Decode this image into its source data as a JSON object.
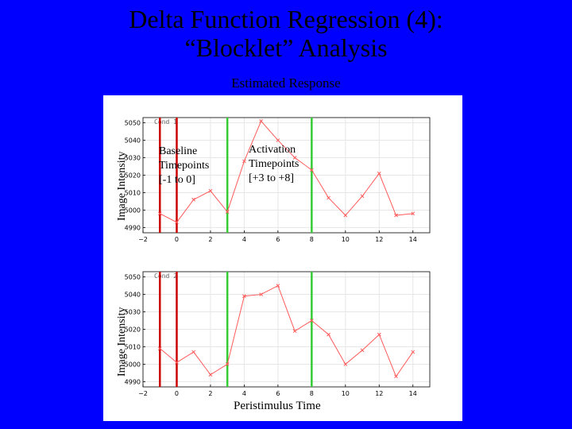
{
  "slide": {
    "title_line1": "Delta Function Regression (4):",
    "title_line2": "“Blocklet” Analysis",
    "subtitle": "Estimated Response"
  },
  "annotations": {
    "baseline_line1": "Baseline",
    "baseline_line2": "Timepoints",
    "baseline_line3": "[-1 to 0]",
    "activation_line1": "Activation",
    "activation_line2": "Timepoints",
    "activation_line3": "[+3 to +8]"
  },
  "colors": {
    "background": "#0000ff",
    "series": "#ff5a5a",
    "baseline_lines": "#cc0000",
    "activation_lines": "#33cc33"
  },
  "chart_data": [
    {
      "type": "line",
      "panel_label": "Cond 1",
      "xlabel": "",
      "ylabel": "Image Intensity",
      "xlim": [
        -2,
        15
      ],
      "ylim": [
        4987,
        5053
      ],
      "xticks": [
        -2,
        0,
        2,
        4,
        6,
        8,
        10,
        12,
        14
      ],
      "yticks": [
        4990,
        5000,
        5010,
        5020,
        5030,
        5040,
        5050
      ],
      "x": [
        -1,
        0,
        1,
        2,
        3,
        4,
        5,
        6,
        7,
        8,
        9,
        10,
        11,
        12,
        13,
        14
      ],
      "values": [
        4998,
        4993,
        5006,
        5011,
        4999,
        5028,
        5051,
        5040,
        5030,
        5023,
        5007,
        4997,
        5008,
        5021,
        4997,
        4998
      ],
      "vertical_lines": {
        "baseline": [
          -1,
          0
        ],
        "activation": [
          3,
          8
        ]
      },
      "grid": true
    },
    {
      "type": "line",
      "panel_label": "Cond 2",
      "xlabel": "Peristimulus Time",
      "ylabel": "Image Intensity",
      "xlim": [
        -2,
        15
      ],
      "ylim": [
        4987,
        5053
      ],
      "xticks": [
        -2,
        0,
        2,
        4,
        6,
        8,
        10,
        12,
        14
      ],
      "yticks": [
        4990,
        5000,
        5010,
        5020,
        5030,
        5040,
        5050
      ],
      "x": [
        -1,
        0,
        1,
        2,
        3,
        4,
        5,
        6,
        7,
        8,
        9,
        10,
        11,
        12,
        13,
        14
      ],
      "values": [
        5009,
        5001,
        5007,
        4994,
        5000,
        5039,
        5040,
        5045,
        5019,
        5025,
        5017,
        5000,
        5008,
        5017,
        4993,
        5007
      ],
      "vertical_lines": {
        "baseline": [
          -1,
          0
        ],
        "activation": [
          3,
          8
        ]
      },
      "grid": true
    }
  ]
}
